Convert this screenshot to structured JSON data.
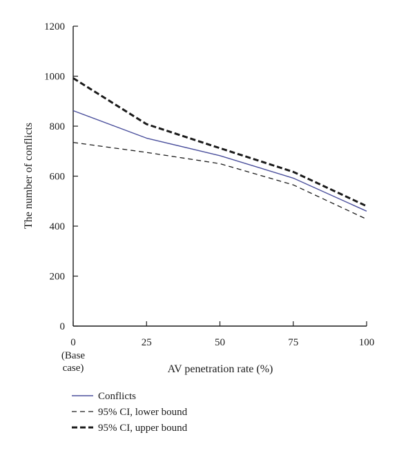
{
  "chart_data": {
    "type": "line",
    "xlabel": "AV penetration rate (%)",
    "ylabel": "The number of conflicts",
    "x": [
      0,
      25,
      50,
      75,
      100
    ],
    "x_tick_labels": [
      "0",
      "25",
      "50",
      "75",
      "100"
    ],
    "x_tick_sublabel": [
      "(Base",
      "case)"
    ],
    "y_ticks": [
      0,
      200,
      400,
      600,
      800,
      1000,
      1200
    ],
    "xlim": [
      0,
      100
    ],
    "ylim": [
      0,
      1200
    ],
    "grid": false,
    "legend_position": "bottom-left",
    "series": [
      {
        "name": "Conflicts",
        "values": [
          862,
          752,
          682,
          592,
          460
        ],
        "color": "#4a4f9c",
        "style": "solid"
      },
      {
        "name": "95% CI, lower bound",
        "values": [
          735,
          695,
          650,
          565,
          428
        ],
        "color": "#1a1a1a",
        "style": "dashed"
      },
      {
        "name": "95% CI, upper bound",
        "values": [
          992,
          808,
          712,
          617,
          480
        ],
        "color": "#1a1a1a",
        "style": "dashed-bold"
      }
    ]
  }
}
